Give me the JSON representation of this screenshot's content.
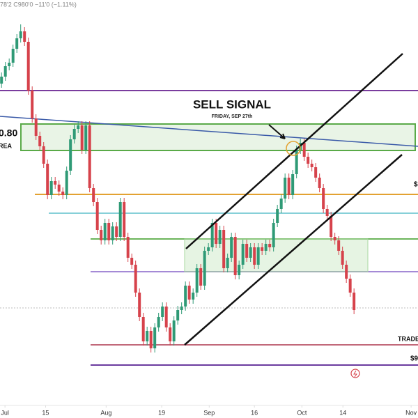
{
  "chart_data": {
    "type": "candlestick",
    "header": "78'2 C980'0 −11'0 (−1.11%)",
    "annotations": {
      "signal": "SELL SIGNAL",
      "signal_date": "FRIDAY, SEP 27th",
      "left_price": "0.80",
      "left_area": "REA",
      "trade": "TRADE",
      "right_price": "$9",
      "right_mark": "$"
    },
    "up_color": "#2f9a76",
    "down_color": "#d6424b",
    "xlim": [
      -0.4,
      108.7
    ],
    "ylim": [
      0,
      600
    ],
    "xticks": [
      {
        "value": 0.9,
        "label": "Jul"
      },
      {
        "value": 11.5,
        "label": "15"
      },
      {
        "value": 27.3,
        "label": "Aug"
      },
      {
        "value": 41.8,
        "label": "19"
      },
      {
        "value": 54.2,
        "label": "Sep"
      },
      {
        "value": 66,
        "label": "16"
      },
      {
        "value": 78.4,
        "label": "Oct"
      },
      {
        "value": 89.1,
        "label": "14"
      },
      {
        "value": 106.9,
        "label": "Nov"
      }
    ],
    "levels": [
      {
        "value": 470,
        "color": "#7a3d9e"
      },
      {
        "value": 321,
        "color": "#e3a232"
      },
      {
        "value": 294,
        "color": "#86d0d8"
      },
      {
        "value": 257,
        "color": "#6bb45a"
      },
      {
        "value": 210,
        "color": "#a58ad6"
      },
      {
        "value": 158,
        "color": "#bbbbbb"
      },
      {
        "value": 105,
        "color": "#c2697a"
      },
      {
        "value": 76,
        "color": "#6a3a9e"
      }
    ],
    "x": [
      0,
      1,
      2,
      3,
      4,
      5,
      6,
      7,
      8,
      9,
      10,
      11,
      12,
      13,
      14,
      15,
      16,
      17,
      18,
      19,
      20,
      21,
      22,
      23,
      24,
      25,
      26,
      27,
      28,
      29,
      30,
      31,
      32,
      33,
      34,
      35,
      36,
      37,
      38,
      39,
      40,
      41,
      42,
      43,
      44,
      45,
      46,
      47,
      48,
      49,
      50,
      51,
      52,
      53,
      54,
      55,
      56,
      57,
      58,
      59,
      60,
      61,
      62,
      63,
      64,
      65,
      66,
      67,
      68,
      69,
      70,
      71,
      72,
      73,
      74,
      75,
      76,
      77,
      78,
      79,
      80,
      81,
      82,
      83,
      84,
      85,
      86,
      87,
      88,
      89,
      90,
      91,
      92
    ],
    "candles": [
      [
        480,
        496,
        474,
        490
      ],
      [
        490,
        511,
        484,
        505
      ],
      [
        505,
        516,
        499,
        510
      ],
      [
        510,
        536,
        504,
        530
      ],
      [
        530,
        551,
        524,
        545
      ],
      [
        545,
        565,
        539,
        555
      ],
      [
        555,
        561,
        534,
        540
      ],
      [
        540,
        546,
        464,
        470
      ],
      [
        470,
        476,
        424,
        430
      ],
      [
        430,
        436,
        399,
        405
      ],
      [
        405,
        411,
        384,
        390
      ],
      [
        390,
        396,
        359,
        365
      ],
      [
        365,
        371,
        314,
        320
      ],
      [
        320,
        346,
        314,
        340
      ],
      [
        340,
        346,
        329,
        335
      ],
      [
        335,
        341,
        319,
        325
      ],
      [
        325,
        331,
        314,
        320
      ],
      [
        320,
        361,
        314,
        355
      ],
      [
        355,
        406,
        349,
        400
      ],
      [
        400,
        421,
        394,
        415
      ],
      [
        415,
        426,
        409,
        420
      ],
      [
        420,
        426,
        379,
        385
      ],
      [
        385,
        426,
        379,
        420
      ],
      [
        420,
        426,
        324,
        330
      ],
      [
        330,
        336,
        304,
        310
      ],
      [
        310,
        316,
        264,
        270
      ],
      [
        270,
        276,
        249,
        255
      ],
      [
        255,
        286,
        249,
        280
      ],
      [
        280,
        286,
        249,
        255
      ],
      [
        255,
        281,
        249,
        275
      ],
      [
        275,
        281,
        254,
        260
      ],
      [
        260,
        316,
        254,
        310
      ],
      [
        310,
        316,
        254,
        260
      ],
      [
        260,
        266,
        224,
        230
      ],
      [
        230,
        236,
        214,
        220
      ],
      [
        220,
        226,
        174,
        180
      ],
      [
        180,
        186,
        139,
        145
      ],
      [
        145,
        151,
        104,
        110
      ],
      [
        110,
        131,
        104,
        125
      ],
      [
        125,
        131,
        94,
        100
      ],
      [
        100,
        136,
        94,
        130
      ],
      [
        130,
        151,
        124,
        145
      ],
      [
        145,
        166,
        139,
        160
      ],
      [
        160,
        166,
        124,
        130
      ],
      [
        130,
        136,
        104,
        110
      ],
      [
        110,
        146,
        104,
        140
      ],
      [
        140,
        161,
        134,
        155
      ],
      [
        155,
        166,
        149,
        160
      ],
      [
        160,
        196,
        154,
        190
      ],
      [
        190,
        196,
        164,
        170
      ],
      [
        170,
        186,
        164,
        180
      ],
      [
        180,
        221,
        174,
        215
      ],
      [
        215,
        221,
        184,
        190
      ],
      [
        190,
        246,
        184,
        240
      ],
      [
        240,
        251,
        234,
        245
      ],
      [
        245,
        286,
        239,
        280
      ],
      [
        280,
        286,
        244,
        250
      ],
      [
        250,
        276,
        244,
        270
      ],
      [
        270,
        276,
        209,
        215
      ],
      [
        215,
        236,
        209,
        230
      ],
      [
        230,
        266,
        224,
        260
      ],
      [
        260,
        266,
        199,
        205
      ],
      [
        205,
        226,
        199,
        220
      ],
      [
        220,
        256,
        214,
        250
      ],
      [
        250,
        256,
        224,
        230
      ],
      [
        230,
        251,
        224,
        245
      ],
      [
        245,
        251,
        214,
        220
      ],
      [
        220,
        251,
        214,
        245
      ],
      [
        245,
        251,
        234,
        240
      ],
      [
        240,
        256,
        234,
        250
      ],
      [
        250,
        256,
        239,
        245
      ],
      [
        245,
        286,
        239,
        280
      ],
      [
        280,
        306,
        274,
        300
      ],
      [
        300,
        321,
        294,
        315
      ],
      [
        315,
        351,
        309,
        345
      ],
      [
        345,
        351,
        314,
        320
      ],
      [
        320,
        356,
        314,
        350
      ],
      [
        350,
        391,
        344,
        385
      ],
      [
        385,
        401,
        379,
        395
      ],
      [
        395,
        401,
        369,
        375
      ],
      [
        375,
        381,
        359,
        365
      ],
      [
        365,
        371,
        354,
        360
      ],
      [
        360,
        366,
        339,
        345
      ],
      [
        345,
        351,
        324,
        330
      ],
      [
        330,
        336,
        294,
        300
      ],
      [
        300,
        306,
        284,
        290
      ],
      [
        290,
        296,
        254,
        260
      ],
      [
        260,
        266,
        249,
        255
      ],
      [
        255,
        261,
        234,
        240
      ],
      [
        240,
        246,
        214,
        220
      ],
      [
        220,
        226,
        194,
        200
      ],
      [
        200,
        206,
        174,
        180
      ],
      [
        180,
        186,
        149,
        155
      ]
    ]
  }
}
